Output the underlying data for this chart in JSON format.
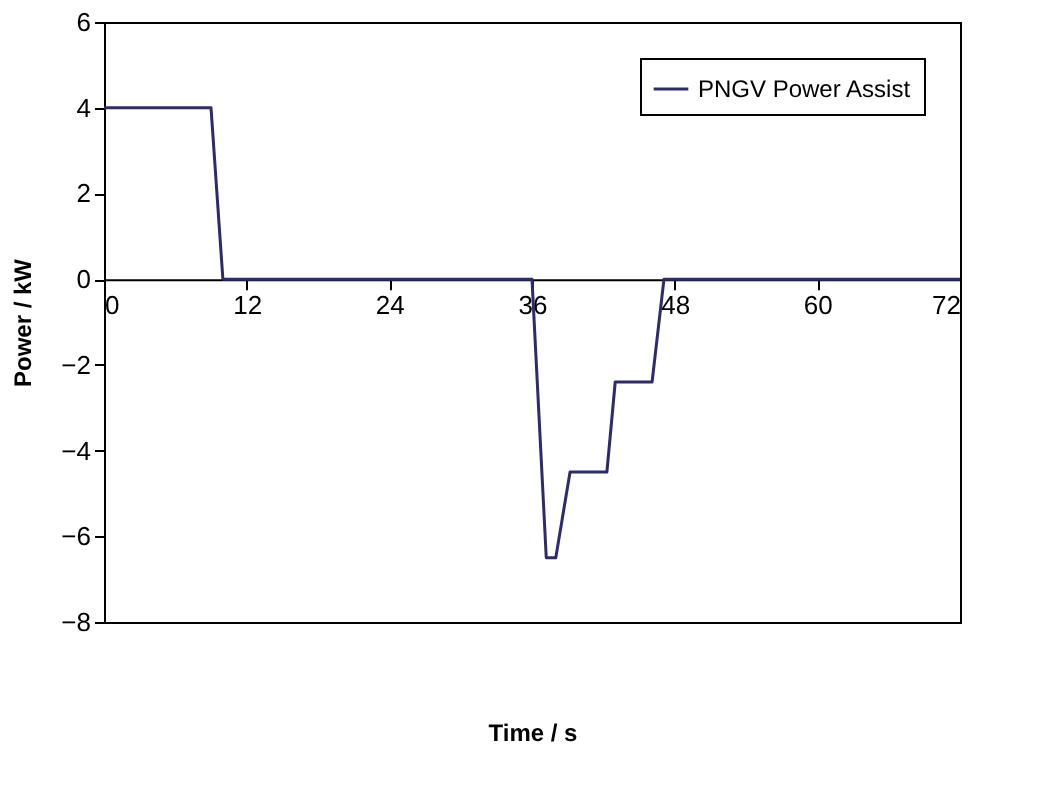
{
  "chart_data": {
    "type": "line",
    "xlabel": "Time / s",
    "ylabel": "Power / kW",
    "x": [
      0,
      9,
      10,
      36,
      37.2,
      38,
      39.2,
      42.3,
      43,
      46.1,
      47.1,
      72
    ],
    "series": [
      {
        "name": "PNGV Power Assist",
        "color": "#2e2a6e",
        "values": [
          4,
          4,
          0,
          0,
          -6.5,
          -6.5,
          -4.5,
          -4.5,
          -2.4,
          -2.4,
          0,
          0
        ]
      }
    ],
    "xlim": [
      0,
      72
    ],
    "xticks": [
      0,
      12,
      24,
      36,
      48,
      60,
      72
    ],
    "ylim": [
      -8,
      6
    ],
    "yticks": [
      -8,
      -6,
      -4,
      -2,
      0,
      2,
      4,
      6
    ],
    "grid": false,
    "legend": "top right",
    "marker": "none",
    "line_style": "solid"
  }
}
